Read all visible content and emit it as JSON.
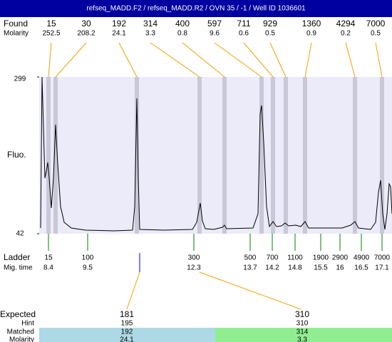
{
  "chart_data": {
    "type": "electropherogram",
    "title": "refseq_MADD.F2 / refseq_MADD.R2 / OVN 35 / -1 / Well ID 1036601",
    "found_label": "Found",
    "molarity_label": "Molarity",
    "found": [
      15,
      30,
      192,
      314,
      400,
      597,
      711,
      929,
      1360,
      4294,
      7000
    ],
    "molarity": [
      252.5,
      208.2,
      24.1,
      3.3,
      0.8,
      9.6,
      0.6,
      0.5,
      0.9,
      0.2,
      0.5
    ],
    "y_label": "Fluo.",
    "ylim": [
      42,
      299
    ],
    "yticks": [
      42,
      299
    ],
    "ladder_label": "Ladder",
    "mig_time_label": "Mig. time",
    "ladder": [
      15,
      100,
      300,
      500,
      700,
      1100,
      1900,
      2900,
      4900,
      7000
    ],
    "mig_time": [
      8.4,
      9.5,
      12.3,
      13.7,
      14.2,
      14.8,
      15.5,
      16,
      16.5,
      17.1
    ],
    "table": {
      "row_labels": [
        "Expected",
        "Hint",
        "Matched",
        "Molarity"
      ],
      "expected": [
        181,
        310
      ],
      "hint": [
        195,
        310
      ],
      "matched": [
        192,
        314
      ],
      "molarity": [
        24.1,
        3.3
      ]
    }
  }
}
